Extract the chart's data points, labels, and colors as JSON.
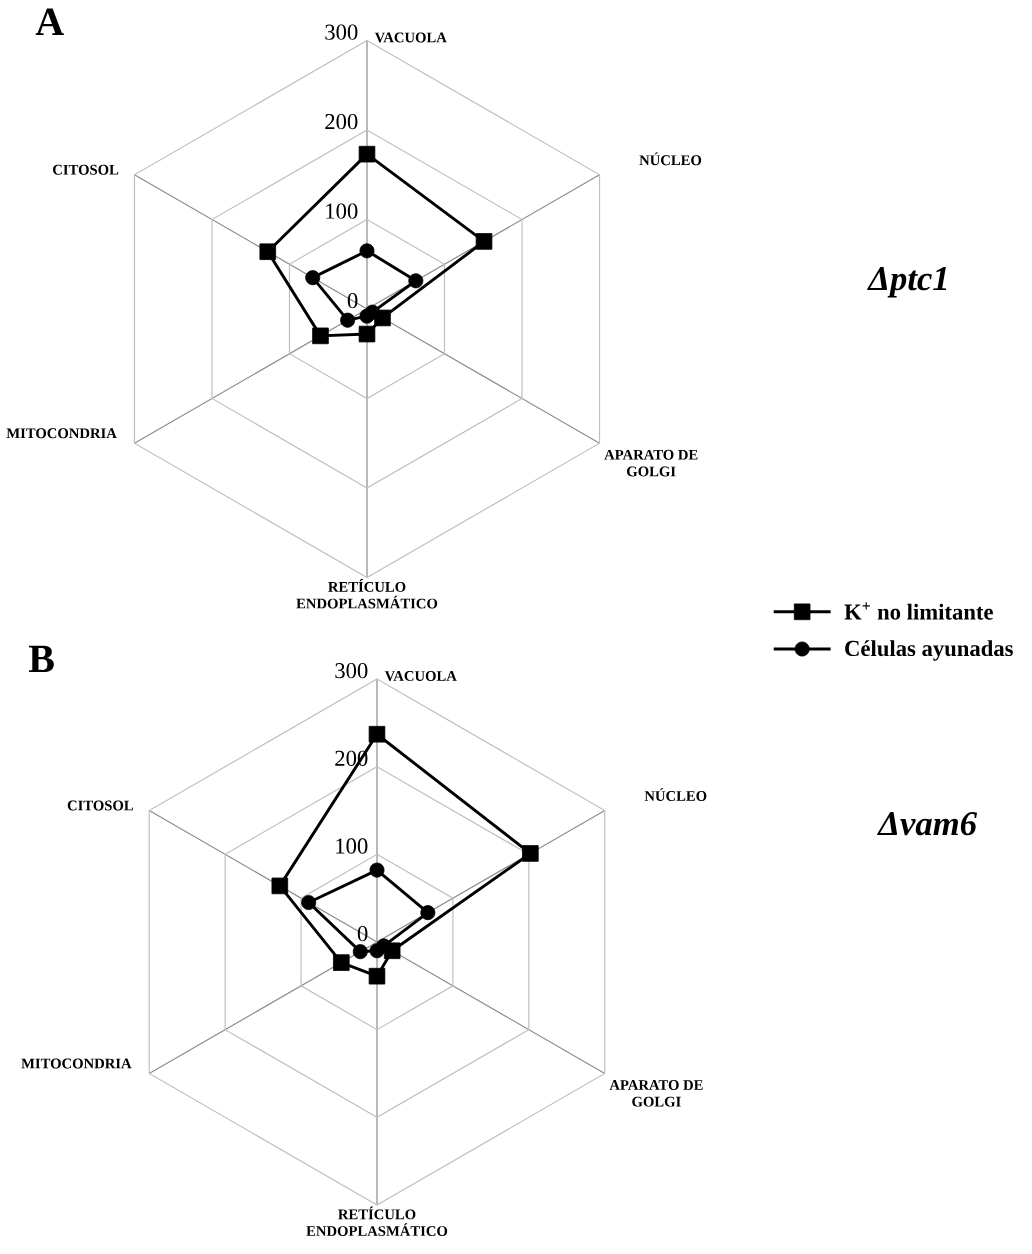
{
  "chart_data": [
    {
      "type": "radar",
      "title": "A",
      "subtitle": "Δptc1",
      "categories": [
        "VACUOLA",
        "NÚCLEO",
        "APARATO DE GOLGI",
        "RETÍCULO ENDOPLASMÁTICO",
        "MITOCONDRIA",
        "CITOSOL"
      ],
      "series": [
        {
          "name": "K$^{+}$ no limitante",
          "color": "#000000",
          "marker": "square",
          "values": [
            173,
            151,
            20,
            28,
            60,
            128
          ]
        },
        {
          "name": "Células ayunadas",
          "color": "#000000",
          "marker": "circle",
          "values": [
            65,
            63,
            7,
            8,
            25,
            70
          ]
        }
      ],
      "ylim": [
        0,
        300
      ],
      "yticks": [
        0,
        100,
        200,
        300
      ],
      "grid": true,
      "legend": "bottom right"
    },
    {
      "type": "radar",
      "title": "B",
      "subtitle": "Δvam6",
      "categories": [
        "VACUOLA",
        "NÚCLEO",
        "APARATO DE GOLGI",
        "RETÍCULO ENDOPLASMÁTICO",
        "MITOCONDRIA",
        "CITOSOL"
      ],
      "series": [
        {
          "color": "#000000",
          "marker": "square",
          "values": [
            237,
            202,
            20,
            39,
            47,
            128
          ]
        },
        {
          "color": "#000000",
          "marker": "circle",
          "values": [
            82,
            67,
            9,
            10,
            22,
            90
          ]
        }
      ],
      "ylim": [
        0,
        300
      ],
      "yticks": [
        0,
        100,
        200,
        300
      ],
      "grid": true
    }
  ]
}
